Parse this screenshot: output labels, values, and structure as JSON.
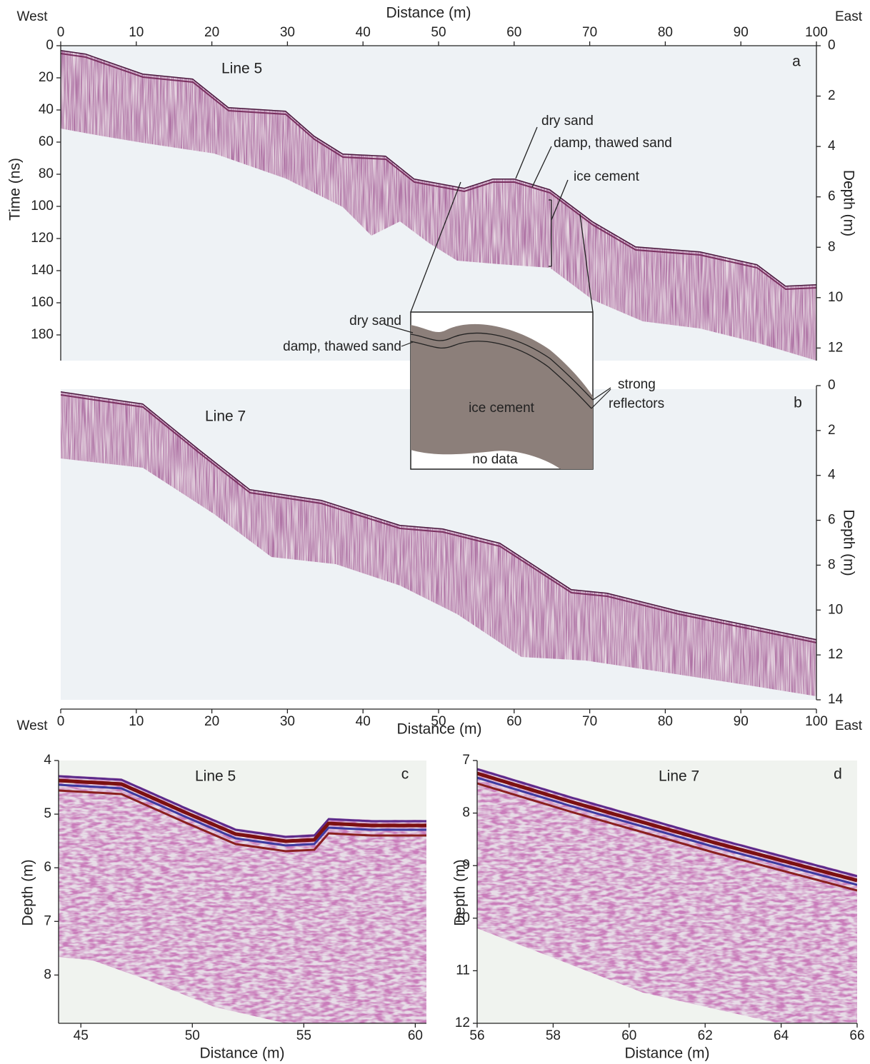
{
  "figure": {
    "panels": [
      {
        "label": "a",
        "line": "Line 5",
        "x_title": "Distance (m)",
        "west": "West",
        "east": "East",
        "xlim": [
          0,
          100
        ],
        "xticks": [
          0,
          10,
          20,
          30,
          40,
          50,
          60,
          70,
          80,
          90,
          100
        ],
        "ylabel": "Time (ns)",
        "ylim": [
          0,
          196
        ],
        "yticks": [
          0,
          20,
          40,
          60,
          80,
          100,
          120,
          140,
          160,
          180
        ],
        "y2label": "Depth (m)",
        "y2lim": [
          0,
          12.5
        ],
        "y2ticks": [
          0,
          2,
          4,
          6,
          8,
          10,
          12
        ],
        "annotations": [
          "dry sand",
          "damp, thawed sand",
          "ice cement"
        ]
      },
      {
        "label": "b",
        "line": "Line 7",
        "x_title": "Distance (m)",
        "west": "West",
        "east": "East",
        "xlim": [
          0,
          100
        ],
        "xticks": [
          0,
          10,
          20,
          30,
          40,
          50,
          60,
          70,
          80,
          90,
          100
        ],
        "y2label": "Depth (m)",
        "y2lim": [
          0,
          14
        ],
        "y2ticks": [
          0,
          2,
          4,
          6,
          8,
          10,
          12,
          14
        ]
      },
      {
        "label": "c",
        "line": "Line 5",
        "x_title": "Distance (m)",
        "xlim": [
          44,
          60.5
        ],
        "xticks": [
          45,
          50,
          55,
          60
        ],
        "ylabel": "Depth (m)",
        "ylim": [
          4,
          8.9
        ],
        "yticks": [
          4,
          5,
          6,
          7,
          8
        ]
      },
      {
        "label": "d",
        "line": "Line 7",
        "x_title": "Distance (m)",
        "xlim": [
          56,
          66
        ],
        "xticks": [
          56,
          58,
          60,
          62,
          64,
          66
        ],
        "ylabel": "Depth (m)",
        "ylim": [
          7,
          12
        ],
        "yticks": [
          7,
          8,
          9,
          10,
          11,
          12
        ]
      }
    ],
    "inset": {
      "dry_sand": "dry sand",
      "damp_sand": "damp, thawed sand",
      "ice_cement": "ice cement",
      "no_data": "no data",
      "strong": "strong",
      "reflectors": "reflectors"
    }
  }
}
